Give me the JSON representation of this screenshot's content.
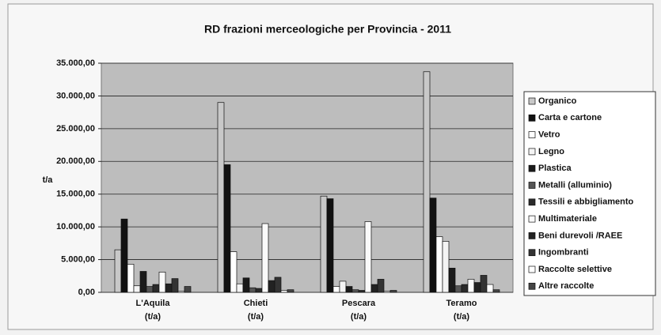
{
  "chart_data": {
    "type": "bar",
    "title": "RD frazioni merceologiche per Provincia - 2011",
    "y_label": "t/a",
    "categories": [
      "L'Aquila\n(t/a)",
      "Chieti\n(t/a)",
      "Pescara\n(t/a)",
      "Teramo\n(t/a)"
    ],
    "series": [
      {
        "name": "Organico",
        "color": "#c8c8c8",
        "values": [
          6500,
          29000,
          14700,
          33700
        ]
      },
      {
        "name": "Carta e cartone",
        "color": "#111111",
        "values": [
          11200,
          19500,
          14300,
          14400
        ]
      },
      {
        "name": "Vetro",
        "color": "#ffffff",
        "values": [
          4300,
          6200,
          900,
          8500
        ]
      },
      {
        "name": "Legno",
        "color": "#f4f4f4",
        "values": [
          1000,
          1300,
          1700,
          7800
        ]
      },
      {
        "name": "Plastica",
        "color": "#1a1a1a",
        "values": [
          3200,
          2200,
          900,
          3700
        ]
      },
      {
        "name": "Metalli (alluminio)",
        "color": "#555555",
        "values": [
          900,
          700,
          400,
          1000
        ]
      },
      {
        "name": "Tessili e abbigliamento",
        "color": "#2a2a2a",
        "values": [
          1200,
          600,
          300,
          1200
        ]
      },
      {
        "name": "Multimateriale",
        "color": "#fafafa",
        "values": [
          3100,
          10500,
          10800,
          2000
        ]
      },
      {
        "name": "Beni durevoli /RAEE",
        "color": "#222222",
        "values": [
          1300,
          1800,
          1200,
          1500
        ]
      },
      {
        "name": "Ingombranti",
        "color": "#333333",
        "values": [
          2100,
          2300,
          2000,
          2600
        ]
      },
      {
        "name": "Raccolte selettive",
        "color": "#ffffff",
        "values": [
          200,
          300,
          200,
          1200
        ]
      },
      {
        "name": "Altre raccolte",
        "color": "#444444",
        "values": [
          900,
          400,
          300,
          400
        ]
      }
    ],
    "ylim": [
      0,
      35000
    ],
    "yticks": [
      {
        "value": 0,
        "label": "0,00"
      },
      {
        "value": 5000,
        "label": "5.000,00"
      },
      {
        "value": 10000,
        "label": "10.000,00"
      },
      {
        "value": 15000,
        "label": "15.000,00"
      },
      {
        "value": 20000,
        "label": "20.000,00"
      },
      {
        "value": 25000,
        "label": "25.000,00"
      },
      {
        "value": 30000,
        "label": "30.000,00"
      },
      {
        "value": 35000,
        "label": "35.000,00"
      }
    ],
    "grid": true
  }
}
